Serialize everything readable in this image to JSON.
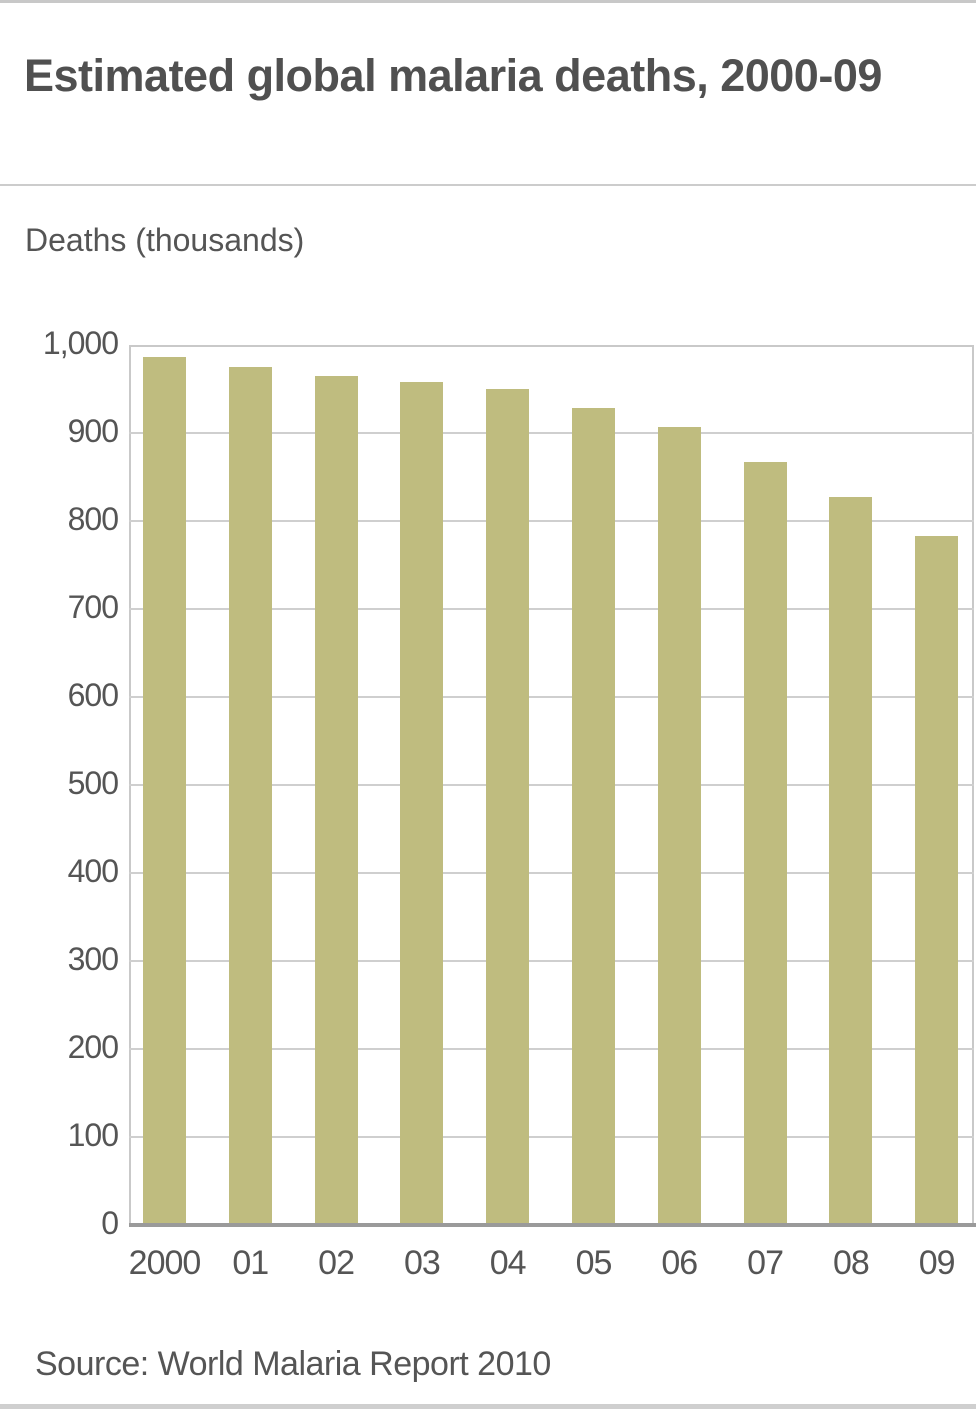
{
  "header": {
    "title": "Estimated global malaria deaths, 2000-09"
  },
  "axis": {
    "y_label": "Deaths (thousands)",
    "y_ticks": [
      "1,000",
      "900",
      "800",
      "700",
      "600",
      "500",
      "400",
      "300",
      "200",
      "100",
      "0"
    ],
    "x_ticks": [
      "2000",
      "01",
      "02",
      "03",
      "04",
      "05",
      "06",
      "07",
      "08",
      "09"
    ]
  },
  "footer": {
    "source": "Source: World Malaria Report 2010"
  },
  "colors": {
    "bar": "#bfbc7f",
    "gridline": "#cfcfcf",
    "text": "#4a4a4a"
  },
  "chart_data": {
    "type": "bar",
    "title": "Estimated global malaria deaths, 2000-09",
    "xlabel": "",
    "ylabel": "Deaths (thousands)",
    "categories": [
      "2000",
      "01",
      "02",
      "03",
      "04",
      "05",
      "06",
      "07",
      "08",
      "09"
    ],
    "values": [
      986,
      975,
      965,
      958,
      950,
      928,
      907,
      867,
      827,
      783
    ],
    "ylim": [
      0,
      1000
    ],
    "yticks": [
      0,
      100,
      200,
      300,
      400,
      500,
      600,
      700,
      800,
      900,
      1000
    ],
    "grid": true,
    "legend": null,
    "source": "Source: World Malaria Report 2010"
  }
}
